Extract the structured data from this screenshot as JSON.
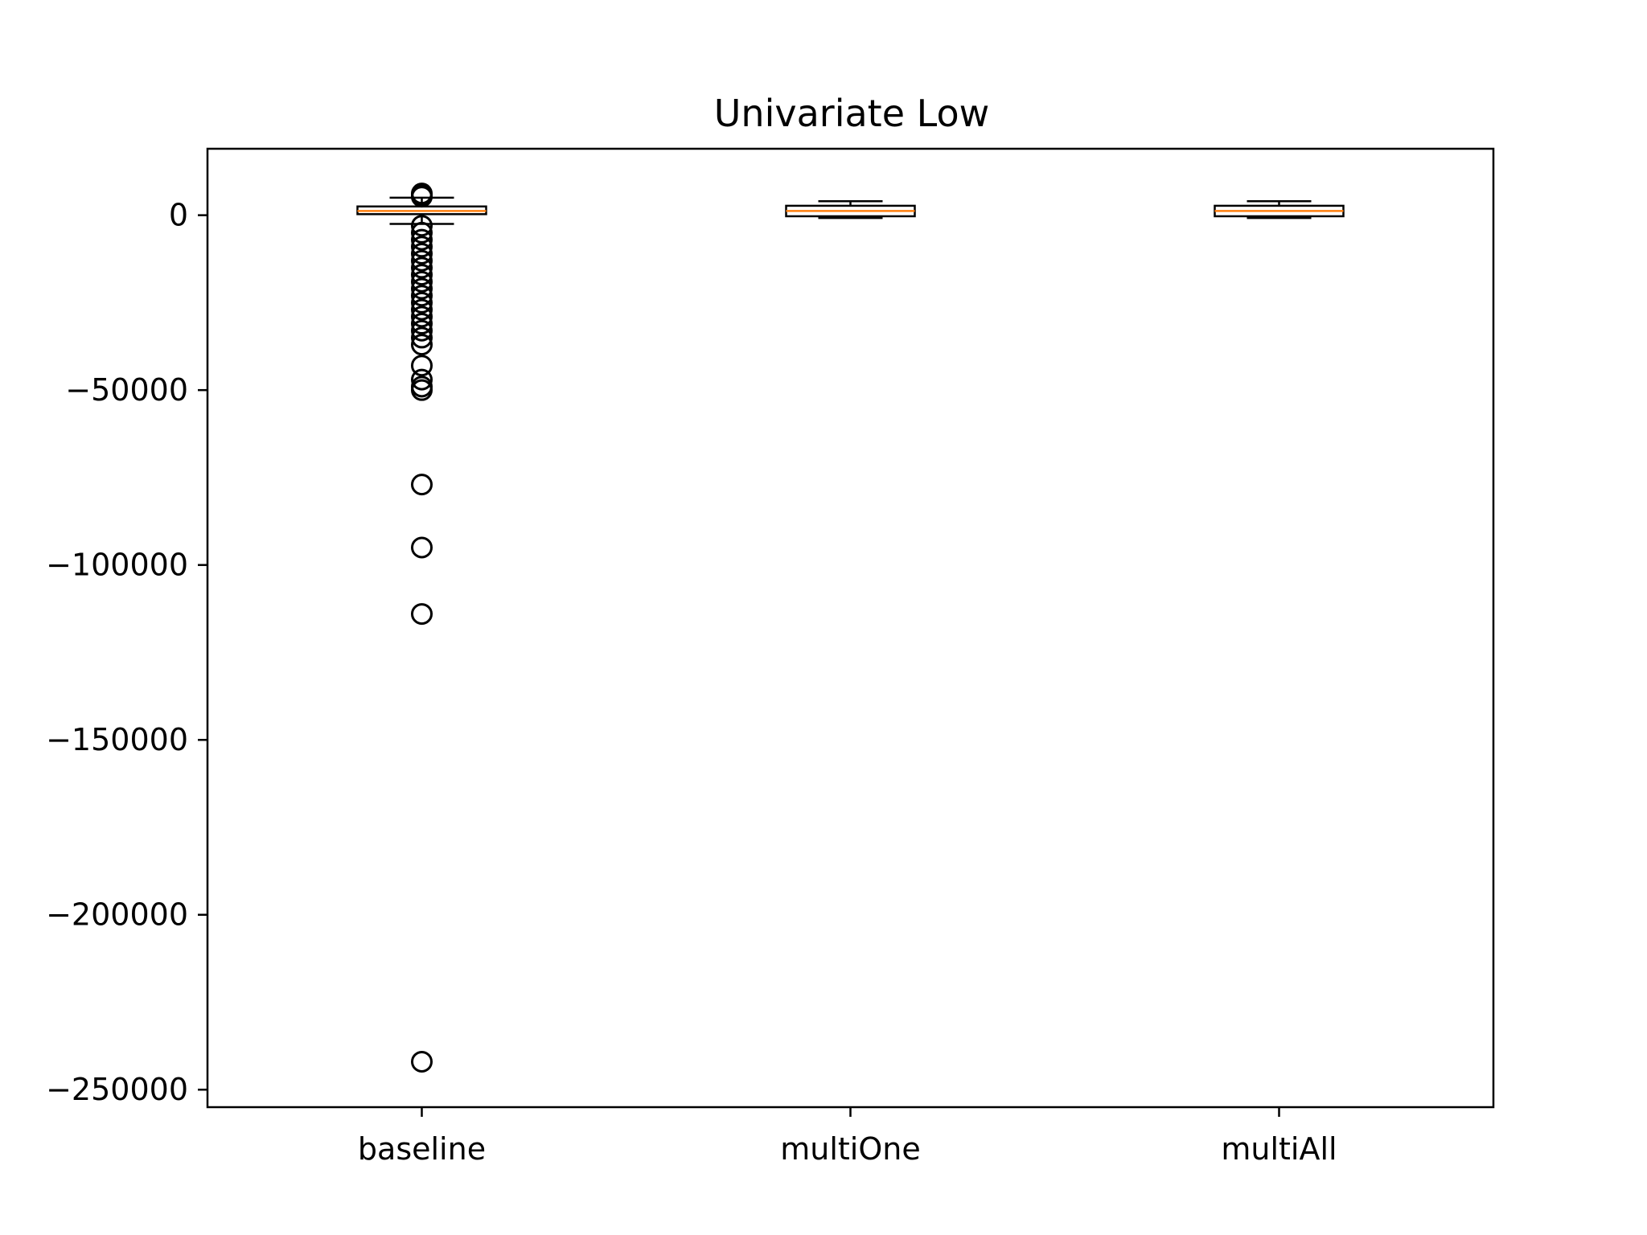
{
  "chart_data": {
    "type": "box",
    "title": "Univariate Low",
    "xlabel": "",
    "ylabel": "",
    "categories": [
      "baseline",
      "multiOne",
      "multiAll"
    ],
    "ylim": [
      -255000,
      19000
    ],
    "yticks": [
      0,
      -50000,
      -100000,
      -150000,
      -200000,
      -250000
    ],
    "ytick_labels": [
      "0",
      "−50000",
      "−100000",
      "−150000",
      "−200000",
      "−250000"
    ],
    "grid": false,
    "colors": {
      "box": "#000000",
      "median": "#ff7f0e",
      "background": "#ffffff"
    },
    "boxes": [
      {
        "name": "baseline",
        "whisker_low": -2500,
        "q1": 300,
        "median": 1200,
        "q3": 2500,
        "whisker_high": 5000,
        "outliers": [
          6200,
          5800,
          5300,
          -3000,
          -5000,
          -7000,
          -9000,
          -11000,
          -13000,
          -15000,
          -17000,
          -19000,
          -21000,
          -23000,
          -25000,
          -27000,
          -29000,
          -31000,
          -33000,
          -35000,
          -37000,
          -43000,
          -47000,
          -49000,
          -50000,
          -77000,
          -95000,
          -114000,
          -242000
        ]
      },
      {
        "name": "multiOne",
        "whisker_low": -800,
        "q1": -300,
        "median": 1200,
        "q3": 2700,
        "whisker_high": 4000,
        "outliers": []
      },
      {
        "name": "multiAll",
        "whisker_low": -800,
        "q1": -300,
        "median": 1200,
        "q3": 2700,
        "whisker_high": 4000,
        "outliers": []
      }
    ]
  }
}
